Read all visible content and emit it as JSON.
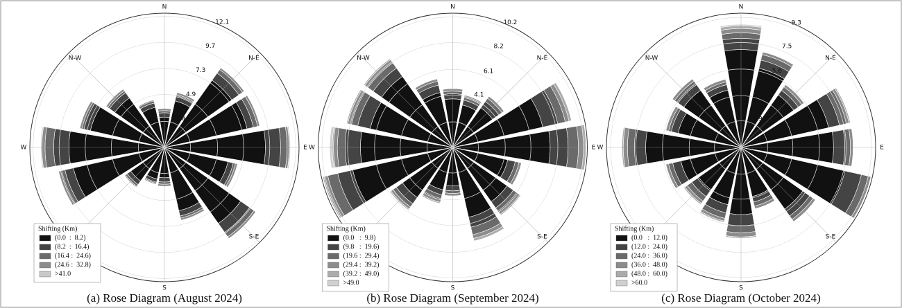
{
  "chart_data": [
    {
      "type": "rose",
      "title": "(a) Rose Diagram (August 2024)",
      "categories": [
        "N",
        null,
        "N-E",
        null,
        "E",
        null,
        "S-E",
        null,
        "S",
        null,
        null,
        null,
        "W",
        null,
        "N-W",
        null
      ],
      "rlim": [
        0,
        12.4
      ],
      "rticks": [
        2.4,
        4.9,
        7.3,
        9.7,
        12.1
      ],
      "legend_title": "Shifting (Km)",
      "legend": "lower left",
      "series": [
        {
          "name": "(0.0  :  8.2)",
          "color": "#111111",
          "values": [
            2.8,
            4.4,
            7.6,
            7.8,
            9.3,
            6.0,
            8.6,
            6.0,
            2.8,
            3.0,
            3.8,
            8.6,
            8.8,
            7.0,
            5.6,
            3.8
          ]
        },
        {
          "name": "(8.2  :  16.4)",
          "color": "#444444",
          "values": [
            0.4,
            0.4,
            0.8,
            0.6,
            1.4,
            0.5,
            1.0,
            0.5,
            0.4,
            0.3,
            0.4,
            0.8,
            1.4,
            0.6,
            0.6,
            0.4
          ]
        },
        {
          "name": "(16.4 :  24.6)",
          "color": "#6a6a6a",
          "values": [
            0.2,
            0.2,
            0.4,
            0.4,
            0.6,
            0.2,
            0.5,
            0.2,
            0.2,
            0.1,
            0.2,
            0.4,
            0.8,
            0.2,
            0.2,
            0.2
          ]
        },
        {
          "name": "(24.6 :  32.8)",
          "color": "#8c8c8c",
          "values": [
            0.2,
            0.2,
            0.2,
            0.2,
            0.2,
            0.2,
            0.2,
            0.2,
            0.2,
            0.1,
            0.1,
            0.2,
            0.3,
            0.2,
            0.2,
            0.1
          ]
        },
        {
          "name": ">41.0",
          "color": "#c8c8c8",
          "values": [
            0,
            0,
            0,
            0,
            0.1,
            0,
            0,
            0,
            0,
            0,
            0,
            0,
            0.1,
            0,
            0,
            0
          ]
        }
      ]
    },
    {
      "type": "rose",
      "title": "(b) Rose Diagram (September 2024)",
      "categories": [
        "N",
        null,
        "N-E",
        null,
        "E",
        null,
        "S-E",
        null,
        "S",
        null,
        null,
        null,
        "W",
        null,
        "N-W",
        null
      ],
      "rlim": [
        0,
        10.5
      ],
      "rticks": [
        2.0,
        4.1,
        6.1,
        8.2,
        10.2
      ],
      "legend_title": "Shifting (Km)",
      "legend": "lower left",
      "series": [
        {
          "name": "(0.0   :  9.8)",
          "color": "#111111",
          "values": [
            3.8,
            3.4,
            3.8,
            7.2,
            7.6,
            4.4,
            5.2,
            5.6,
            3.0,
            3.4,
            4.8,
            8.0,
            7.2,
            6.6,
            6.8,
            4.4
          ]
        },
        {
          "name": "(9.8   :  19.6)",
          "color": "#444444",
          "values": [
            0.4,
            0.4,
            0.6,
            1.2,
            1.4,
            0.6,
            0.6,
            0.8,
            0.4,
            0.4,
            0.6,
            1.2,
            1.2,
            1.0,
            0.8,
            0.6
          ]
        },
        {
          "name": "(19.6 :  29.4)",
          "color": "#6a6a6a",
          "values": [
            0.2,
            0.2,
            0.3,
            0.6,
            0.8,
            0.3,
            0.4,
            0.6,
            0.2,
            0.4,
            0.3,
            0.8,
            0.6,
            0.5,
            0.5,
            0.3
          ]
        },
        {
          "name": "(29.4 :  39.2)",
          "color": "#8c8c8c",
          "values": [
            0.2,
            0.2,
            0.2,
            0.3,
            0.4,
            0.2,
            0.2,
            0.3,
            0.2,
            0.2,
            0.2,
            0.3,
            0.3,
            0.3,
            0.3,
            0.2
          ]
        },
        {
          "name": "(39.2 :  49.0)",
          "color": "#ababab",
          "values": [
            0,
            0,
            0,
            0.2,
            0.2,
            0,
            0.1,
            0.2,
            0,
            0.1,
            0.1,
            0.1,
            0.1,
            0.1,
            0.1,
            0
          ]
        },
        {
          "name": ">49.0",
          "color": "#d0d0d0",
          "values": [
            0,
            0,
            0,
            0,
            0,
            0,
            0,
            0,
            0,
            0,
            0,
            0,
            0.2,
            0,
            0,
            0
          ]
        }
      ]
    },
    {
      "type": "rose",
      "title": "(c) Rose Diagram (October 2024)",
      "categories": [
        "N",
        null,
        "N-E",
        null,
        "E",
        null,
        "S-E",
        null,
        "S",
        null,
        null,
        null,
        "W",
        null,
        "N-W",
        null
      ],
      "rlim": [
        0,
        9.6
      ],
      "rticks": [
        1.9,
        3.7,
        5.6,
        7.5,
        9.3
      ],
      "legend_title": "Shifting (Km)",
      "legend": "lower left",
      "series": [
        {
          "name": "(0.0   :  12.0)",
          "color": "#111111",
          "values": [
            7.0,
            5.8,
            4.6,
            6.4,
            6.6,
            7.6,
            5.4,
            3.6,
            4.8,
            4.2,
            3.8,
            4.4,
            6.8,
            4.6,
            5.0,
            4.2
          ]
        },
        {
          "name": "(12.0 :  24.0)",
          "color": "#444444",
          "values": [
            0.8,
            0.6,
            0.4,
            0.8,
            0.8,
            1.2,
            0.6,
            0.4,
            0.8,
            0.6,
            0.5,
            0.6,
            0.8,
            0.5,
            0.5,
            0.4
          ]
        },
        {
          "name": "(24.0 :  36.0)",
          "color": "#6a6a6a",
          "values": [
            0.4,
            0.4,
            0.3,
            0.5,
            0.4,
            0.5,
            0.3,
            0.3,
            0.5,
            0.4,
            0.4,
            0.3,
            0.5,
            0.2,
            0.3,
            0.2
          ]
        },
        {
          "name": "(36.0 :  48.0)",
          "color": "#8c8c8c",
          "values": [
            0.3,
            0.2,
            0.2,
            0.2,
            0.2,
            0.2,
            0.2,
            0.2,
            0.3,
            0.2,
            0.2,
            0.2,
            0.3,
            0.2,
            0.2,
            0.2
          ]
        },
        {
          "name": "(48.0 :  60.0)",
          "color": "#ababab",
          "values": [
            0.2,
            0,
            0,
            0.1,
            0,
            0,
            0,
            0,
            0.1,
            0.1,
            0.1,
            0,
            0.1,
            0,
            0,
            0
          ]
        },
        {
          "name": ">60.0",
          "color": "#d0d0d0",
          "values": [
            0.1,
            0,
            0,
            0,
            0,
            0,
            0,
            0,
            0,
            0,
            0,
            0,
            0,
            0,
            0,
            0
          ]
        }
      ]
    }
  ]
}
